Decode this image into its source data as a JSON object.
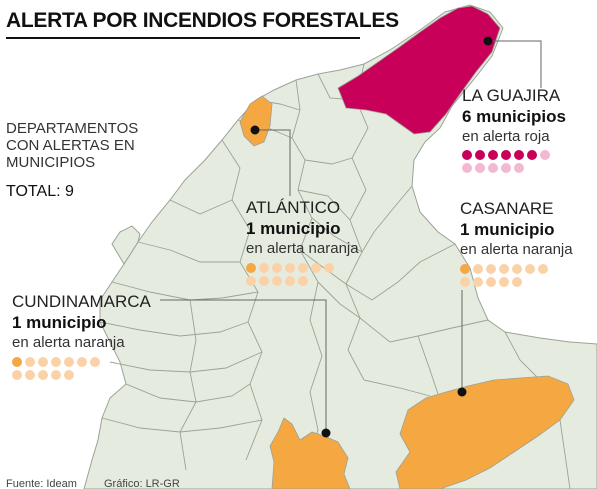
{
  "title": "ALERTA POR INCENDIOS FORESTALES",
  "summary": {
    "lines": [
      "DEPARTAMENTOS",
      "CON ALERTAS EN",
      "MUNICIPIOS"
    ],
    "total": "TOTAL: 9"
  },
  "colors": {
    "land": "#e6ebdf",
    "border": "#9aa395",
    "sea": "#ffffff",
    "alert_red": "#c8005a",
    "alert_red_light": "#f3b9d2",
    "alert_orange": "#f5a742",
    "alert_orange_light": "#fbd2a8",
    "leader": "#666666"
  },
  "departments": [
    {
      "name": "LA GUAJIRA",
      "count": "6 municipios",
      "status": "en alerta roja",
      "alert_level": "roja",
      "active_dots": 6,
      "total_dots": 12
    },
    {
      "name": "ATLÁNTICO",
      "count": "1 municipio",
      "status": "en alerta naranja",
      "alert_level": "naranja",
      "active_dots": 1,
      "total_dots": 12
    },
    {
      "name": "CASANARE",
      "count": "1 municipio",
      "status": "en alerta naranja",
      "alert_level": "naranja",
      "active_dots": 1,
      "total_dots": 12
    },
    {
      "name": "CUNDINAMARCA",
      "count": "1 municipio",
      "status": "en alerta naranja",
      "alert_level": "naranja",
      "active_dots": 1,
      "total_dots": 12
    }
  ],
  "footer": {
    "source": "Fuente: Ideam",
    "credit": "Gráfico: LR-GR"
  }
}
